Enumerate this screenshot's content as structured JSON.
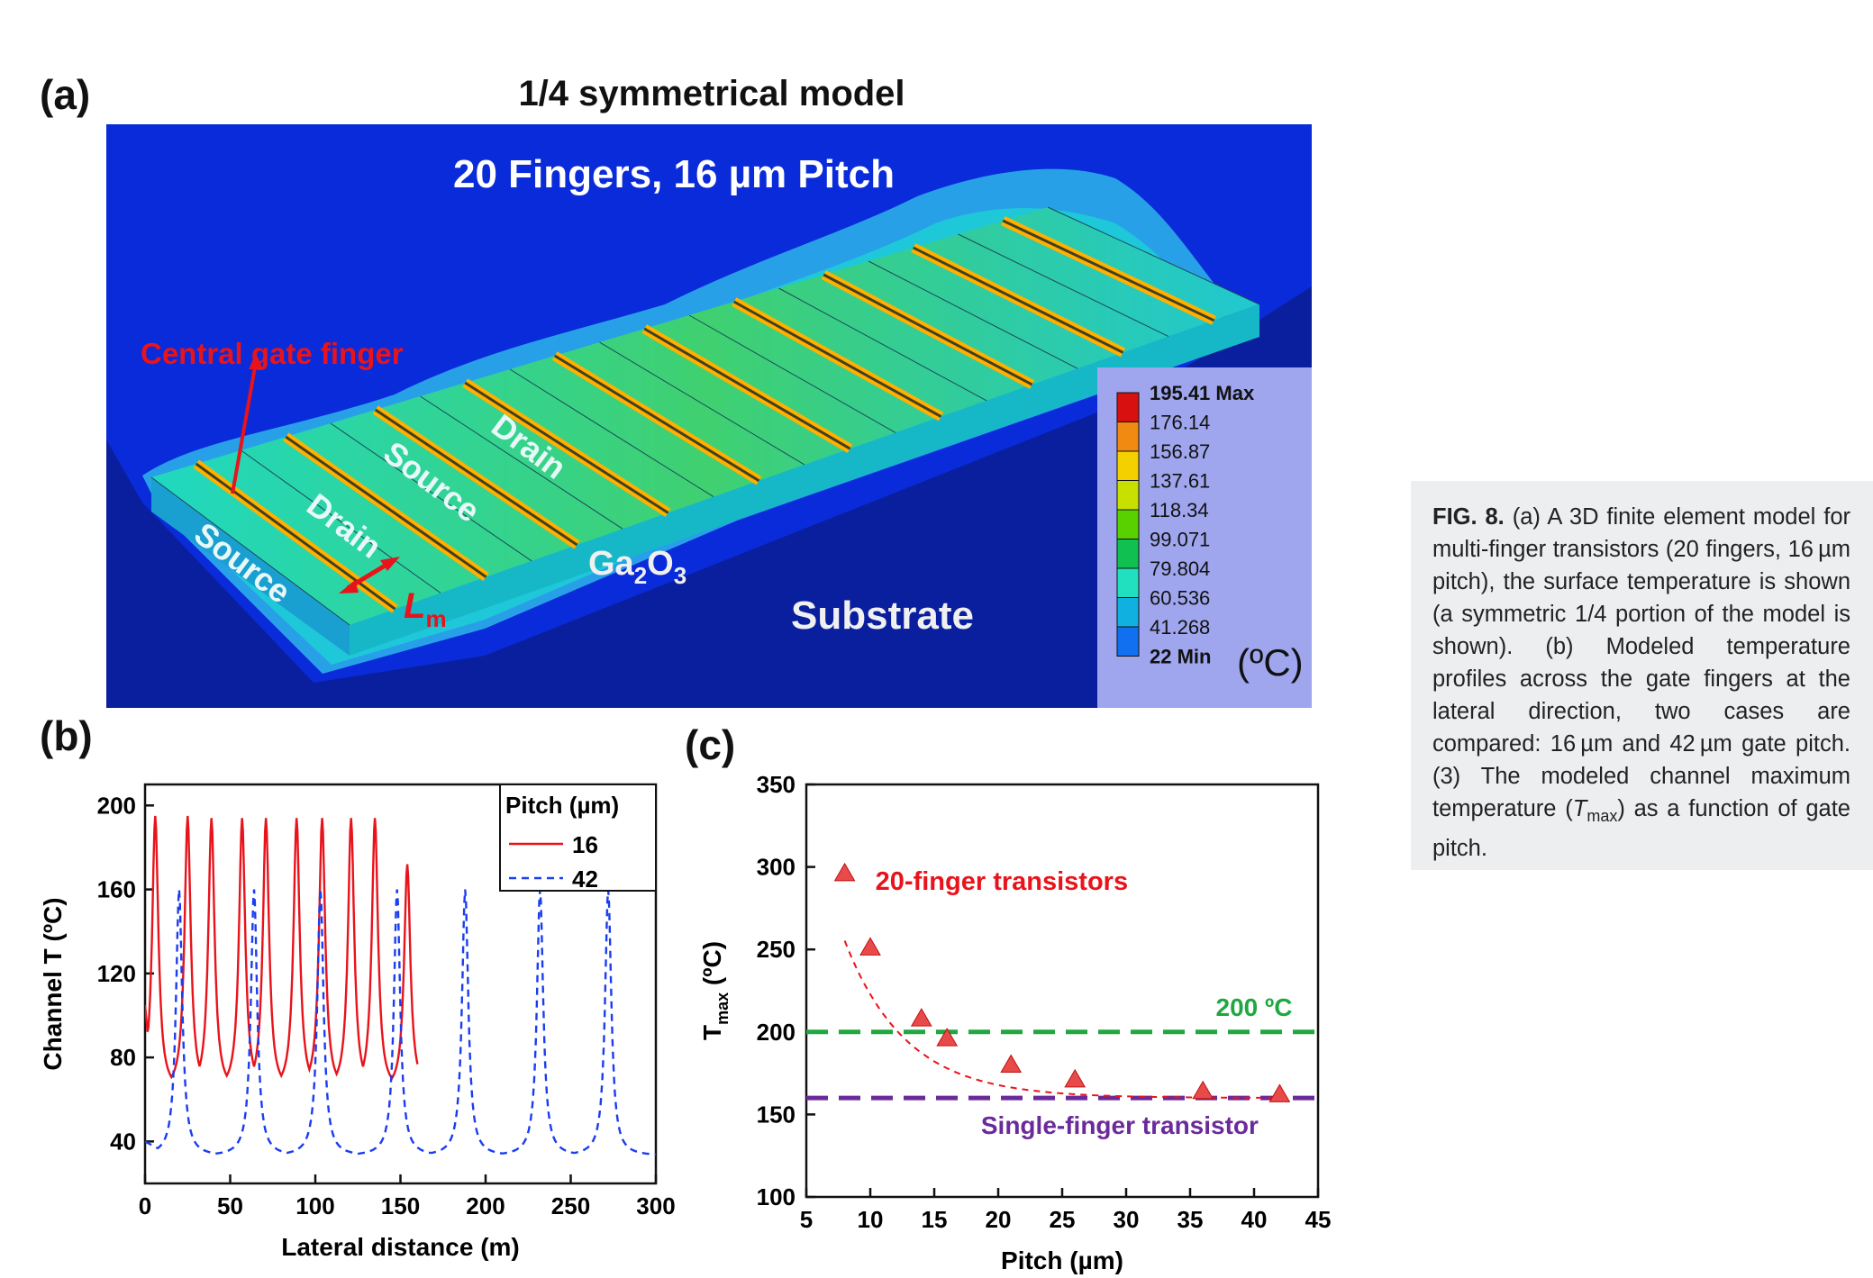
{
  "panel_a": {
    "label": "(a)",
    "title": "1/4 symmetrical model",
    "subtitle": "20 Fingers, 16 µm Pitch",
    "annotations": {
      "central_gate": "Central gate finger",
      "source1": "Source",
      "drain1": "Drain",
      "source2": "Source",
      "drain2": "Drain",
      "ga2o3_main": "Ga",
      "ga2o3_sub1": "2",
      "ga2o3_mid": "O",
      "ga2o3_sub2": "3",
      "lm_main": "L",
      "lm_sub": "m",
      "substrate": "Substrate"
    },
    "legend": {
      "unit": "(ºC)",
      "levels": [
        "195.41 Max",
        "176.14",
        "156.87",
        "137.61",
        "118.34",
        "99.071",
        "79.804",
        "60.536",
        "41.268",
        "22 Min"
      ],
      "colors": [
        "#d81010",
        "#f08a10",
        "#f5d000",
        "#c8e000",
        "#59d000",
        "#10c050",
        "#20e0c0",
        "#10b0e0",
        "#1070f0",
        "#0a18e8"
      ]
    },
    "colors": {
      "background": "#0a2bd9",
      "substrate": "#0a1f9e",
      "legend_bg": "#9fa6ee"
    }
  },
  "chart_data": [
    {
      "type": "line",
      "panel": "(b)",
      "xlabel": "Lateral distance (m)",
      "ylabel": "Channel T (ºC)",
      "xlim": [
        0,
        300
      ],
      "ylim": [
        20,
        210
      ],
      "xticks": [
        0,
        50,
        100,
        150,
        200,
        250,
        300
      ],
      "yticks": [
        40,
        80,
        120,
        160,
        200
      ],
      "legend_title": "Pitch (µm)",
      "series": [
        {
          "name": "16",
          "color": "#e8131b",
          "dash": "solid",
          "peaks": [
            6,
            25,
            39,
            57,
            71,
            89,
            104,
            121,
            135,
            154
          ],
          "peak_values": [
            195,
            195,
            194,
            194,
            194,
            194,
            194,
            194,
            194,
            172
          ],
          "min_value": 64,
          "x_start": 0,
          "x_end": 160,
          "start_value": 105,
          "end_value": 73
        },
        {
          "name": "42",
          "color": "#1a3df0",
          "dash": "dashed",
          "peaks": [
            20,
            64,
            103,
            148,
            188,
            232,
            272
          ],
          "peak_values": [
            160,
            160,
            160,
            160,
            160,
            160,
            160
          ],
          "min_value": 33,
          "x_start": 0,
          "x_end": 300,
          "start_value": 40,
          "end_value": 33
        }
      ]
    },
    {
      "type": "scatter",
      "panel": "(c)",
      "xlabel": "Pitch (µm)",
      "ylabel_main": "T",
      "ylabel_sub": "max",
      "ylabel_unit": " (ºC)",
      "xlim": [
        5,
        45
      ],
      "ylim": [
        100,
        350
      ],
      "xticks": [
        5,
        10,
        15,
        20,
        25,
        30,
        35,
        40,
        45
      ],
      "yticks": [
        100,
        150,
        200,
        250,
        300,
        350
      ],
      "series": [
        {
          "name": "20-finger transistors",
          "color": "#e8131b",
          "x": [
            8,
            10,
            14,
            16,
            21,
            26,
            36,
            42
          ],
          "y": [
            296,
            251,
            208,
            196,
            180,
            171,
            164,
            162
          ]
        }
      ],
      "hlines": [
        {
          "label": "200 ºC",
          "value": 200,
          "color": "#20a840"
        },
        {
          "label": "Single-finger transistor",
          "value": 160,
          "color": "#6b2a9a"
        }
      ]
    }
  ],
  "caption": {
    "fig": "FIG. 8.",
    "text": " (a) A 3D finite element model for multi-finger transistors (20 fingers, 16 µm pitch), the surface temperature is shown (a symmetric 1/4 portion of the model is shown). (b) Modeled temperature profiles across the gate fingers at the lateral direction, two cases are compared: 16 µm and 42 µm gate pitch. (3) The modeled channel maximum temperature (",
    "tmax_main": "T",
    "tmax_sub": "max",
    "text_end": ") as a function of gate pitch."
  },
  "labels": {
    "b": "(b)",
    "c": "(c)"
  }
}
